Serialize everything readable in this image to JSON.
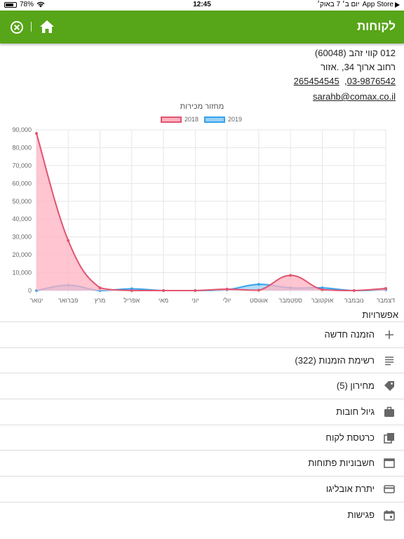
{
  "status_bar": {
    "battery": "78%",
    "datetime": "יום ב׳ 7 באוק׳",
    "time": "12:45",
    "back_app": "App Store",
    "battery_level": 0.78
  },
  "header": {
    "title": "לקוחות"
  },
  "contact": {
    "name": "012 קווי זהב (60048)",
    "address": "רחוב ארוך 34, .אזור",
    "phone1": "03-9876542",
    "phone_sep": ",",
    "phone2": "265454545",
    "email": "sarahb@comax.co.il"
  },
  "chart_data": {
    "type": "area",
    "title": "מחזור מכירות",
    "categories": [
      "ינואר",
      "פברואר",
      "מרץ",
      "אפריל",
      "מאי",
      "יוני",
      "יולי",
      "אוגוסט",
      "ספטמבר",
      "אוקטובר",
      "נובמבר",
      "דצמבר"
    ],
    "series": [
      {
        "name": "2019",
        "values": [
          0,
          3000,
          0,
          1000,
          0,
          0,
          500,
          3500,
          1500,
          1500,
          0,
          500
        ],
        "color": "#36a2eb",
        "fill": "#9ad0f5"
      },
      {
        "name": "2018",
        "values": [
          88000,
          28000,
          1500,
          0,
          0,
          0,
          800,
          200,
          8500,
          500,
          0,
          1200
        ],
        "color": "#e05570",
        "fill": "#ffb1c1"
      }
    ],
    "y_ticks": [
      "0",
      "10,000",
      "20,000",
      "30,000",
      "40,000",
      "50,000",
      "60,000",
      "70,000",
      "80,000",
      "90,000"
    ],
    "ylim": [
      0,
      90000
    ],
    "grid": true,
    "legend_position": "top-center"
  },
  "options": {
    "title": "אפשרויות",
    "items": [
      {
        "label": "הזמנה חדשה",
        "icon": "plus-icon"
      },
      {
        "label": "רשימת הזמנות (322)",
        "icon": "list-icon"
      },
      {
        "label": "מחירון (5)",
        "icon": "tag-icon"
      },
      {
        "label": "גיול חובות",
        "icon": "briefcase-icon"
      },
      {
        "label": "כרטסת לקוח",
        "icon": "copy-icon"
      },
      {
        "label": "חשבוניות פתוחות",
        "icon": "window-icon"
      },
      {
        "label": "יתרת אובליגו",
        "icon": "credit-card-icon"
      },
      {
        "label": "פגישות",
        "icon": "calendar-icon"
      }
    ]
  },
  "colors": {
    "header_bg": "#57a519",
    "line_2018": "#e05570",
    "line_2019": "#36a2eb"
  }
}
